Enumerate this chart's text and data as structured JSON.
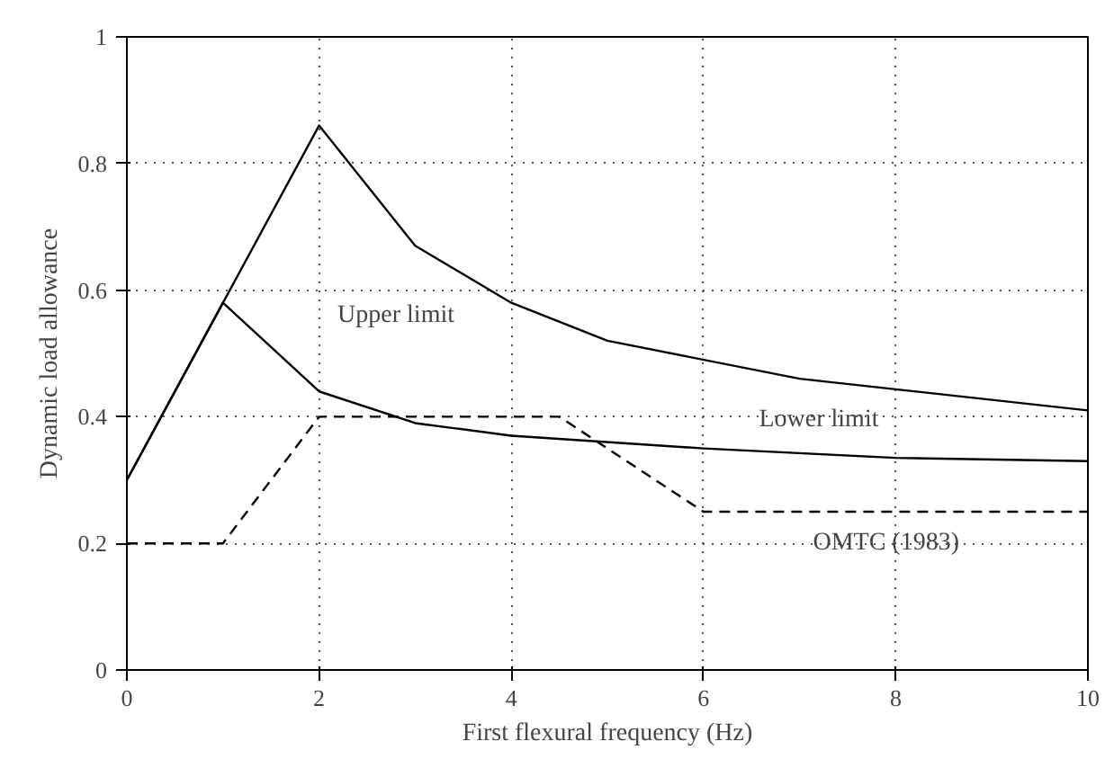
{
  "chart_data": {
    "type": "line",
    "xlabel": "First flexural frequency (Hz)",
    "ylabel": "Dynamic load allowance",
    "xlim": [
      0,
      10
    ],
    "xticks": [
      0,
      2,
      4,
      6,
      8,
      10
    ],
    "ylim": [
      0,
      1
    ],
    "yticks": [
      0,
      0.2,
      0.4,
      0.6,
      0.8,
      1
    ],
    "grid": true,
    "marker": "none",
    "series": [
      {
        "color": "#000000",
        "line_style": "solid",
        "x": [
          0,
          1,
          2,
          3,
          4,
          5,
          7,
          10
        ],
        "values": [
          0.3,
          0.58,
          0.86,
          0.67,
          0.58,
          0.52,
          0.46,
          0.41
        ]
      },
      {
        "color": "#000000",
        "line_style": "solid",
        "x": [
          0,
          1,
          2,
          3,
          4,
          6,
          8,
          10
        ],
        "values": [
          0.3,
          0.58,
          0.44,
          0.39,
          0.37,
          0.35,
          0.335,
          0.33
        ]
      },
      {
        "color": "#000000",
        "line_style": "dashed",
        "x": [
          0,
          1,
          2,
          4.5,
          6,
          10
        ],
        "values": [
          0.2,
          0.2,
          0.4,
          0.4,
          0.25,
          0.25
        ]
      }
    ],
    "annotations": [
      "Upper limit",
      "Lower limit",
      "OMTC (1983)"
    ]
  }
}
